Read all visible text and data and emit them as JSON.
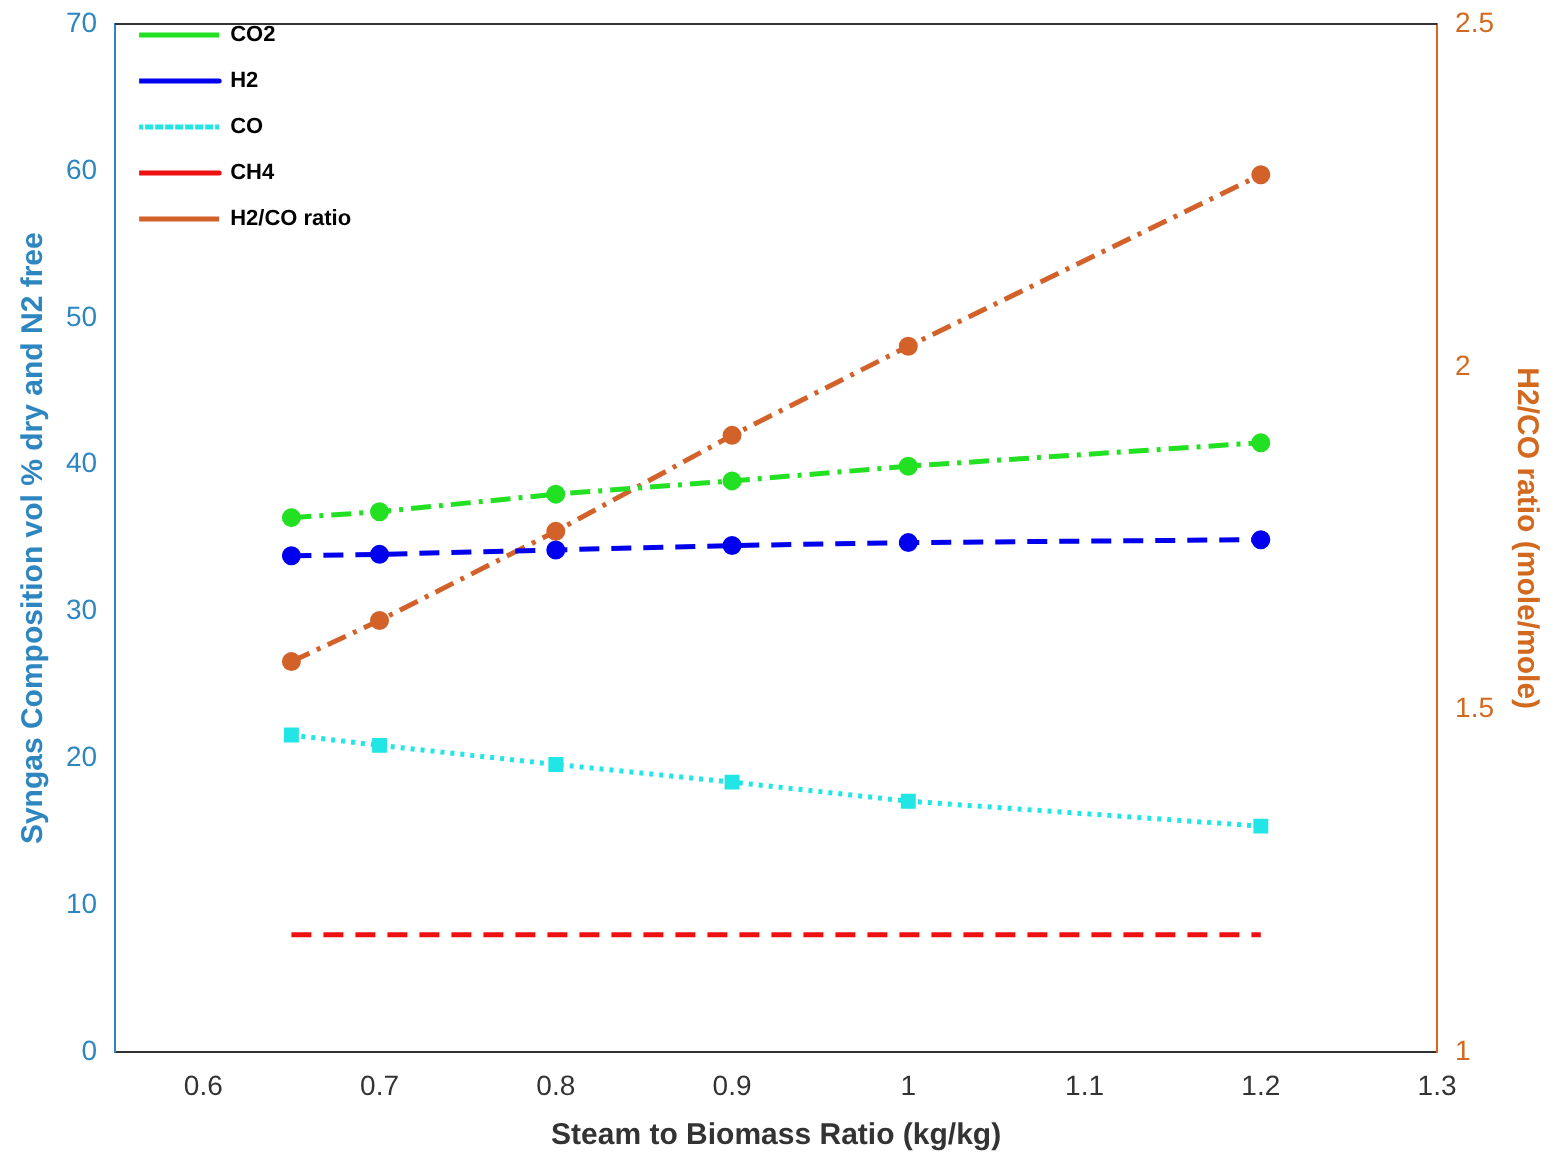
{
  "chart_data": {
    "type": "line",
    "xlabel": "Steam to Biomass Ratio (kg/kg)",
    "ylabel": "Syngas Composition vol % dry and N2 free",
    "y2label": "H2/CO ratio (mole/mole)",
    "x": [
      0.65,
      0.7,
      0.8,
      0.9,
      1,
      1.2
    ],
    "xlim": [
      0.55,
      1.3
    ],
    "xticks": [
      0.6,
      0.7,
      0.8,
      0.9,
      1,
      1.1,
      1.2,
      1.3
    ],
    "ylim": [
      0,
      70
    ],
    "yticks": [
      0,
      10,
      20,
      30,
      40,
      50,
      60,
      70
    ],
    "y2lim": [
      1,
      2.5
    ],
    "y2ticks": [
      1,
      1.5,
      2,
      2.5
    ],
    "grid": false,
    "legend": "top left",
    "series": [
      {
        "name": "CO2",
        "color": "#22e022",
        "values": [
          36.4,
          36.8,
          38.0,
          38.9,
          39.9,
          41.5
        ],
        "marker": "circle",
        "line_style": "dashdot"
      },
      {
        "name": "H2",
        "color": "#0000ee",
        "values": [
          33.8,
          33.9,
          34.2,
          34.5,
          34.7,
          34.9
        ],
        "marker": "circle",
        "line_style": "dashed"
      },
      {
        "name": "CO",
        "color": "#22e5e5",
        "values": [
          21.6,
          20.9,
          19.6,
          18.4,
          17.1,
          15.4
        ],
        "marker": "square",
        "line_style": "dotted"
      },
      {
        "name": "CH4",
        "color": "#ee1111",
        "values": [
          8,
          8,
          8,
          8,
          8,
          8
        ],
        "marker": "none",
        "line_style": "dashed"
      },
      {
        "name": "H2/CO ratio",
        "color": "#d2622a",
        "values": [
          1.57,
          1.63,
          1.76,
          1.9,
          2.03,
          2.28
        ],
        "marker": "circle",
        "line_style": "dashdot",
        "axis": "y2"
      }
    ]
  }
}
